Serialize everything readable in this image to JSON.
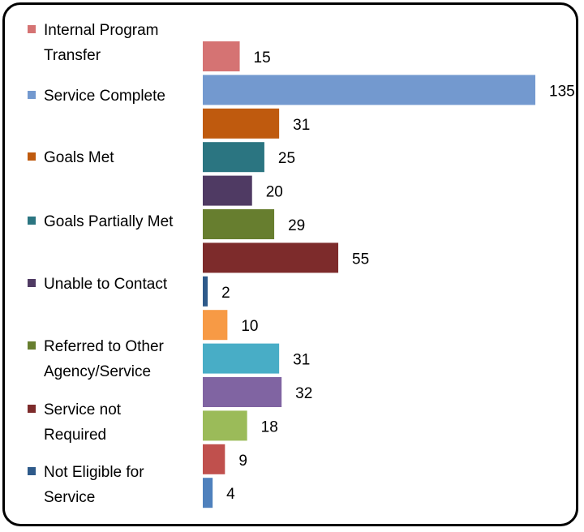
{
  "chart_data": {
    "type": "bar",
    "orientation": "horizontal",
    "values": [
      15,
      135,
      31,
      25,
      20,
      29,
      55,
      2,
      10,
      31,
      32,
      18,
      9,
      4
    ],
    "bar_colors": [
      "#d57373",
      "#7399cf",
      "#bf5a0e",
      "#2b7581",
      "#4f3a63",
      "#677e2f",
      "#7d2b2b",
      "#2e5a8a",
      "#f79a45",
      "#48adc6",
      "#8064a2",
      "#9bbb59",
      "#c0504d",
      "#4f81bd"
    ],
    "legend": [
      {
        "label": "Internal Program Transfer",
        "color": "#d57373"
      },
      {
        "label": "Service Complete",
        "color": "#7399cf"
      },
      {
        "label": "Goals Met",
        "color": "#bf5a0e"
      },
      {
        "label": "Goals Partially Met",
        "color": "#2b7581"
      },
      {
        "label": "Unable to Contact",
        "color": "#4f3a63"
      },
      {
        "label": "Referred to Other Agency/Service",
        "color": "#677e2f"
      },
      {
        "label": "Service not Required",
        "color": "#7d2b2b"
      },
      {
        "label": "Not Eligible for Service",
        "color": "#2e5a8a"
      }
    ],
    "legend_position": "left",
    "grid": false,
    "data_labels": true,
    "xlim": [
      0,
      135
    ]
  }
}
